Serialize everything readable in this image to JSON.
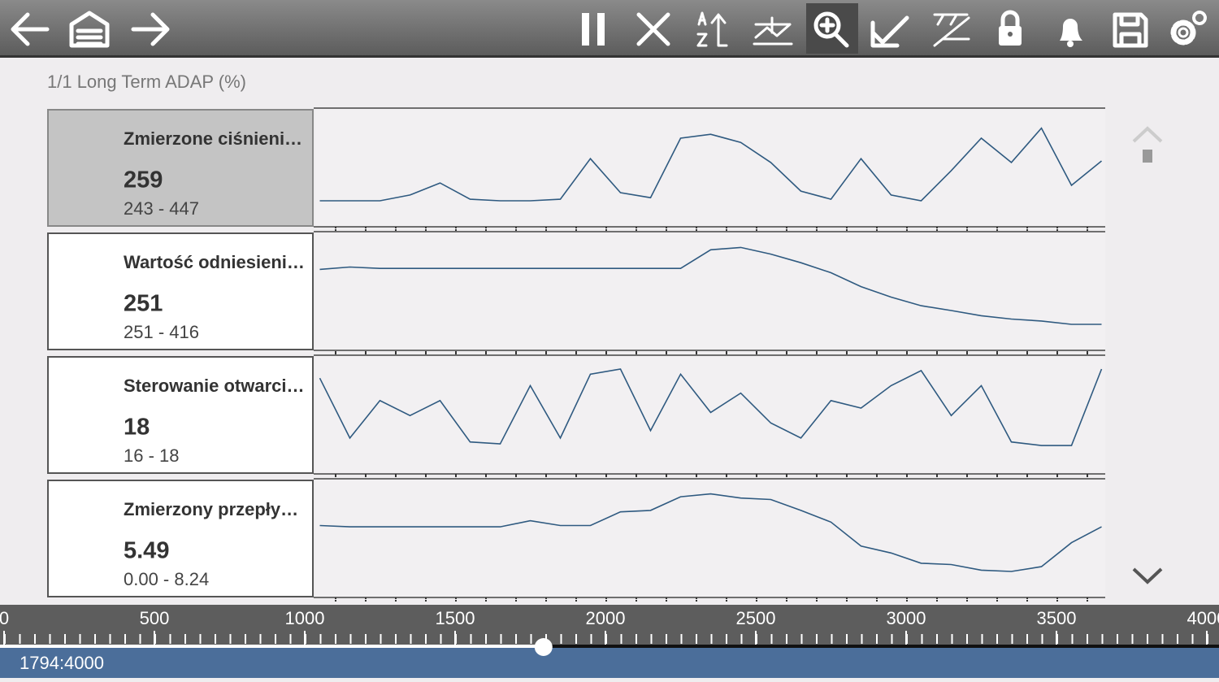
{
  "header": {
    "title": "1/1 Long Term ADAP (%)"
  },
  "chart_data": {
    "type": "line",
    "x": [
      1050,
      1150,
      1250,
      1350,
      1450,
      1550,
      1650,
      1750,
      1850,
      1950,
      2050,
      2150,
      2250,
      2350,
      2450,
      2550,
      2650,
      2750,
      2850,
      2950,
      3050,
      3150,
      3250,
      3350,
      3450,
      3550,
      3650
    ],
    "xlim": [
      0,
      4000
    ],
    "xticks": [
      0,
      500,
      1000,
      1500,
      2000,
      2500,
      3000,
      3500,
      4000
    ],
    "series": [
      {
        "name": "Zmierzone ciśnieni…",
        "value": 259,
        "range": "243 - 447",
        "ylim": [
          243,
          447
        ],
        "color": "#2f5a80",
        "values": [
          243,
          243,
          243,
          258,
          289,
          247,
          243,
          243,
          247,
          352,
          264,
          251,
          405,
          415,
          394,
          342,
          268,
          247,
          352,
          258,
          243,
          321,
          405,
          342,
          431,
          283,
          346
        ]
      },
      {
        "name": "Wartość odniesieni…",
        "value": 251,
        "range": "251 - 416",
        "ylim": [
          251,
          416
        ],
        "color": "#2f5a80",
        "values": [
          366,
          371,
          368,
          368,
          368,
          368,
          368,
          368,
          368,
          368,
          368,
          368,
          368,
          407,
          412,
          398,
          380,
          359,
          330,
          308,
          290,
          280,
          269,
          262,
          258,
          251,
          251
        ]
      },
      {
        "name": "Sterowanie otwarci…",
        "value": 18,
        "range": "16 - 18",
        "ylim": [
          16,
          18
        ],
        "color": "#2f5a80",
        "values": [
          17.77,
          16.25,
          17.2,
          16.82,
          17.2,
          16.15,
          16.1,
          17.58,
          16.25,
          17.87,
          18,
          16.44,
          17.87,
          16.9,
          17.39,
          16.63,
          16.25,
          17.2,
          17.01,
          17.58,
          17.96,
          16.82,
          17.58,
          16.15,
          16.06,
          16.06,
          18
        ]
      },
      {
        "name": "Zmierzony przepły…",
        "value": 5.49,
        "range": "0.00 - 8.24",
        "ylim": [
          0,
          8.24
        ],
        "color": "#2f5a80",
        "values": [
          4.8,
          4.66,
          4.66,
          4.66,
          4.66,
          4.66,
          4.66,
          5.3,
          4.8,
          4.8,
          6.23,
          6.38,
          7.81,
          8.1,
          7.67,
          7.52,
          6.38,
          5.16,
          2.65,
          1.93,
          0.86,
          0.72,
          0.14,
          0,
          0.5,
          3.01,
          4.66
        ]
      }
    ],
    "position": 1794,
    "position_label": "1794:4000"
  }
}
